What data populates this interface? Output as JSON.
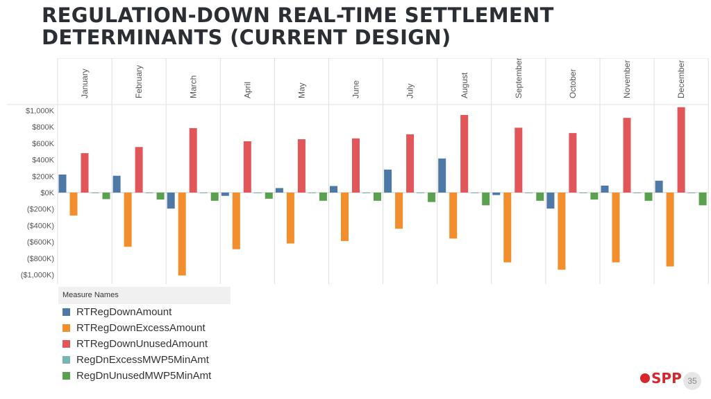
{
  "slide": {
    "title_line1": "REGULATION-DOWN REAL-TIME SETTLEMENT",
    "title_line2": "DETERMINANTS (CURRENT DESIGN)",
    "page_number": "35",
    "logo_text": "SPP"
  },
  "legend": {
    "header": "Measure Names",
    "items": [
      {
        "label": "RTRegDownAmount",
        "color": "#4e79a7"
      },
      {
        "label": "RTRegDownExcessAmount",
        "color": "#f28e2b"
      },
      {
        "label": "RTRegDownUnusedAmount",
        "color": "#e15759"
      },
      {
        "label": "RegDnExcessMWP5MinAmt",
        "color": "#76b7b2"
      },
      {
        "label": "RegDnUnusedMWP5MinAmt",
        "color": "#59a14f"
      }
    ]
  },
  "chart_data": {
    "type": "bar",
    "categories": [
      "January",
      "February",
      "March",
      "April",
      "May",
      "June",
      "July",
      "August",
      "September",
      "October",
      "November",
      "December"
    ],
    "ytick_labels": [
      "$1,000K",
      "$800K",
      "$600K",
      "$400K",
      "$200K",
      "$0K",
      "($200K)",
      "($400K)",
      "($600K)",
      "($800K)",
      "($1,000K)"
    ],
    "ytick_values": [
      1000,
      800,
      600,
      400,
      200,
      0,
      -200,
      -400,
      -600,
      -800,
      -1000
    ],
    "ylim": [
      -1100,
      1100
    ],
    "unit": "thousands of dollars",
    "grid": "vertical separators between months, horizontal zero line",
    "legend_position": "bottom-left",
    "series": [
      {
        "name": "RTRegDownAmount",
        "color": "#4e79a7",
        "values": [
          220,
          205,
          -195,
          -40,
          55,
          80,
          280,
          415,
          -30,
          -195,
          85,
          145
        ]
      },
      {
        "name": "RTRegDownExcessAmount",
        "color": "#f28e2b",
        "values": [
          -280,
          -660,
          -1010,
          -690,
          -620,
          -590,
          -440,
          -560,
          -850,
          -940,
          -850,
          -900
        ]
      },
      {
        "name": "RTRegDownUnusedAmount",
        "color": "#e15759",
        "values": [
          480,
          555,
          785,
          625,
          650,
          660,
          710,
          945,
          790,
          725,
          910,
          1040
        ]
      },
      {
        "name": "RegDnExcessMWP5MinAmt",
        "color": "#76b7b2",
        "values": [
          0,
          0,
          0,
          0,
          0,
          0,
          0,
          0,
          0,
          0,
          0,
          0
        ]
      },
      {
        "name": "RegDnUnusedMWP5MinAmt",
        "color": "#59a14f",
        "values": [
          -80,
          -85,
          -100,
          -75,
          -100,
          -100,
          -115,
          -155,
          -100,
          -85,
          -100,
          -155
        ]
      }
    ]
  }
}
